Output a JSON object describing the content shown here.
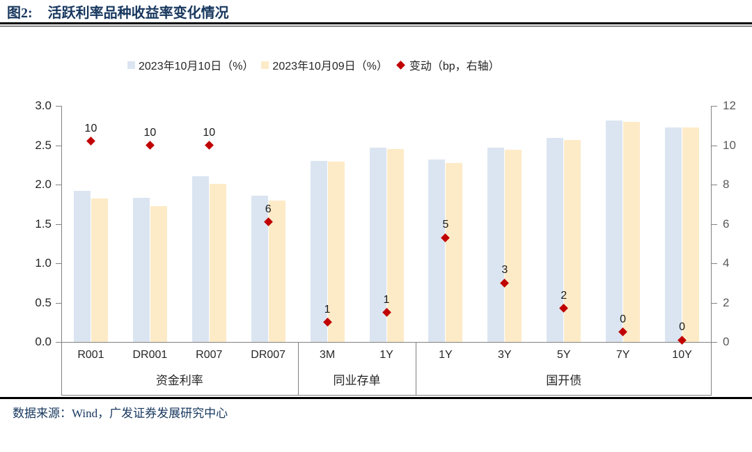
{
  "header": {
    "figure_label": "图2:",
    "title": "活跃利率品种收益率变化情况"
  },
  "footer": {
    "source": "数据来源：Wind，广发证券发展研究中心"
  },
  "colors": {
    "title": "#17375e",
    "bar_today": "#dbe5f1",
    "bar_prev": "#fdebc8",
    "diamond": "#c00000",
    "axis_line": "#808080",
    "left_tick_text": "#262626",
    "right_tick_text": "#595959"
  },
  "chart_data": {
    "type": "bar",
    "title": "活跃利率品种收益率变化情况",
    "legend_position": "top",
    "grid": false,
    "categories": [
      "R001",
      "DR001",
      "R007",
      "DR007",
      "3M",
      "1Y",
      "1Y",
      "3Y",
      "5Y",
      "7Y",
      "10Y"
    ],
    "groups": [
      {
        "label": "资金利率",
        "span": 4
      },
      {
        "label": "同业存单",
        "span": 2
      },
      {
        "label": "国开债",
        "span": 5
      }
    ],
    "series": [
      {
        "name": "2023年10月10日（%）",
        "type": "bar",
        "axis": "left",
        "values": [
          1.92,
          1.83,
          2.11,
          1.86,
          2.3,
          2.47,
          2.32,
          2.47,
          2.59,
          2.81,
          2.73
        ]
      },
      {
        "name": "2023年10月09日（%）",
        "type": "bar",
        "axis": "left",
        "values": [
          1.82,
          1.73,
          2.01,
          1.8,
          2.29,
          2.45,
          2.27,
          2.44,
          2.57,
          2.8,
          2.73
        ]
      },
      {
        "name": "变动（bp，右轴）",
        "type": "scatter-diamond",
        "axis": "right",
        "values": [
          10.2,
          10.0,
          10.0,
          6.1,
          1.0,
          1.5,
          5.3,
          3.0,
          1.7,
          0.5,
          0.1
        ],
        "labels": [
          "10",
          "10",
          "10",
          "6",
          "1",
          "1",
          "5",
          "3",
          "2",
          "0",
          "0"
        ]
      }
    ],
    "left_axis": {
      "min": 0.0,
      "max": 3.0,
      "tick_labels": [
        "3.0",
        "2.5",
        "2.0",
        "1.5",
        "1.0",
        "0.5",
        "0.0"
      ]
    },
    "right_axis": {
      "min": 0,
      "max": 12,
      "tick_labels": [
        "12",
        "10",
        "8",
        "6",
        "4",
        "2",
        "0"
      ]
    }
  }
}
